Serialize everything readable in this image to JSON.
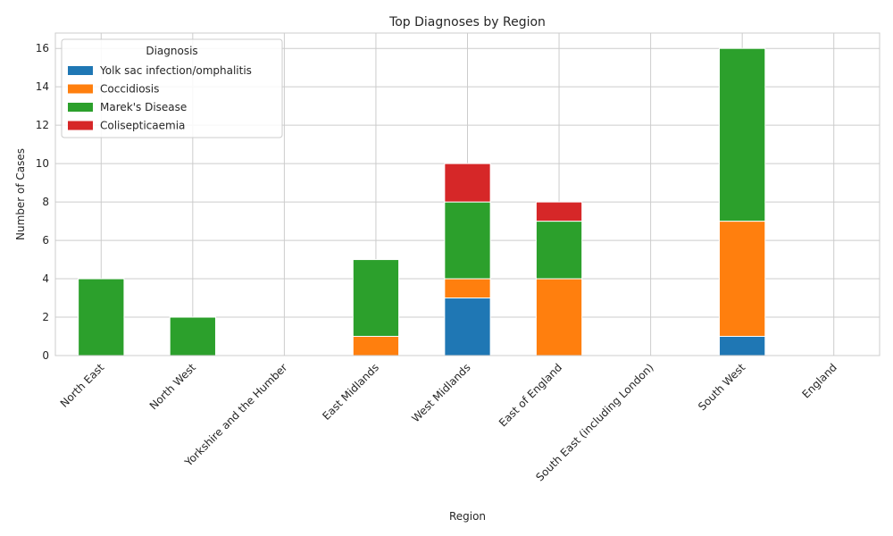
{
  "chart_data": {
    "type": "bar",
    "stacked": true,
    "title": "Top Diagnoses by Region",
    "xlabel": "Region",
    "ylabel": "Number of Cases",
    "ylim": [
      0,
      16.8
    ],
    "yticks": [
      0,
      2,
      4,
      6,
      8,
      10,
      12,
      14,
      16
    ],
    "grid": true,
    "legend": {
      "title": "Diagnosis",
      "position": "top-left"
    },
    "categories": [
      "North East",
      "North West",
      "Yorkshire and the Humber",
      "East Midlands",
      "West Midlands",
      "East of England",
      "South East (including London)",
      "South West",
      "England"
    ],
    "series": [
      {
        "name": "Yolk sac infection/omphalitis",
        "color": "#1f77b4",
        "values": [
          0,
          0,
          0,
          0,
          3,
          0,
          0,
          1,
          0
        ]
      },
      {
        "name": "Coccidiosis",
        "color": "#ff7f0e",
        "values": [
          0,
          0,
          0,
          1,
          1,
          4,
          0,
          6,
          0
        ]
      },
      {
        "name": "Marek's Disease",
        "color": "#2ca02c",
        "values": [
          4,
          2,
          0,
          4,
          4,
          3,
          0,
          9,
          0
        ]
      },
      {
        "name": "Colisepticaemia",
        "color": "#d62728",
        "values": [
          0,
          0,
          0,
          0,
          2,
          1,
          0,
          0,
          0
        ]
      }
    ]
  }
}
